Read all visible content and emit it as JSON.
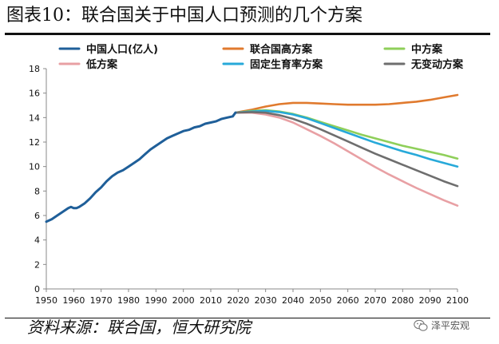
{
  "title": "图表10：联合国关于中国人口预测的几个方案",
  "source": "资料来源：联合国，恒大研究院",
  "watermark": "泽平宏观",
  "colors": {
    "china_pop": "#1f5f99",
    "un_high": "#e07a2e",
    "mid": "#8fcf5a",
    "low": "#e8a0a4",
    "fixed_fertility": "#27a9d9",
    "no_change": "#6e6e6e"
  },
  "chart_data": {
    "type": "line",
    "title": "联合国关于中国人口预测的几个方案",
    "xlabel": "",
    "ylabel": "",
    "xlim": [
      1950,
      2100
    ],
    "ylim": [
      0,
      18
    ],
    "x_ticks": [
      1950,
      1960,
      1970,
      1980,
      1990,
      2000,
      2010,
      2020,
      2030,
      2040,
      2050,
      2060,
      2070,
      2080,
      2090,
      2100
    ],
    "y_ticks": [
      0,
      2,
      4,
      6,
      8,
      10,
      12,
      14,
      16,
      18
    ],
    "grid": false,
    "legend_position": "top",
    "series": [
      {
        "name": "中国人口(亿人)",
        "color_key": "china_pop",
        "points": [
          [
            1950,
            5.5
          ],
          [
            1952,
            5.7
          ],
          [
            1954,
            6.0
          ],
          [
            1956,
            6.3
          ],
          [
            1958,
            6.6
          ],
          [
            1959,
            6.7
          ],
          [
            1960,
            6.6
          ],
          [
            1961,
            6.6
          ],
          [
            1962,
            6.7
          ],
          [
            1964,
            7.0
          ],
          [
            1966,
            7.4
          ],
          [
            1968,
            7.9
          ],
          [
            1970,
            8.3
          ],
          [
            1972,
            8.8
          ],
          [
            1974,
            9.2
          ],
          [
            1976,
            9.5
          ],
          [
            1978,
            9.7
          ],
          [
            1980,
            10.0
          ],
          [
            1982,
            10.3
          ],
          [
            1984,
            10.6
          ],
          [
            1986,
            11.0
          ],
          [
            1988,
            11.4
          ],
          [
            1990,
            11.7
          ],
          [
            1992,
            12.0
          ],
          [
            1994,
            12.3
          ],
          [
            1996,
            12.5
          ],
          [
            1998,
            12.7
          ],
          [
            2000,
            12.9
          ],
          [
            2002,
            13.0
          ],
          [
            2004,
            13.2
          ],
          [
            2006,
            13.3
          ],
          [
            2008,
            13.5
          ],
          [
            2010,
            13.6
          ],
          [
            2012,
            13.7
          ],
          [
            2014,
            13.9
          ],
          [
            2016,
            14.0
          ],
          [
            2018,
            14.1
          ],
          [
            2019,
            14.4
          ]
        ]
      },
      {
        "name": "联合国高方案",
        "color_key": "un_high",
        "points": [
          [
            2019,
            14.4
          ],
          [
            2025,
            14.65
          ],
          [
            2030,
            14.9
          ],
          [
            2035,
            15.1
          ],
          [
            2040,
            15.2
          ],
          [
            2045,
            15.2
          ],
          [
            2050,
            15.15
          ],
          [
            2055,
            15.1
          ],
          [
            2060,
            15.05
          ],
          [
            2065,
            15.05
          ],
          [
            2070,
            15.05
          ],
          [
            2075,
            15.1
          ],
          [
            2080,
            15.2
          ],
          [
            2085,
            15.3
          ],
          [
            2090,
            15.45
          ],
          [
            2095,
            15.65
          ],
          [
            2100,
            15.85
          ]
        ]
      },
      {
        "name": "中方案",
        "color_key": "mid",
        "points": [
          [
            2019,
            14.4
          ],
          [
            2025,
            14.55
          ],
          [
            2030,
            14.6
          ],
          [
            2035,
            14.5
          ],
          [
            2040,
            14.3
          ],
          [
            2045,
            14.0
          ],
          [
            2050,
            13.65
          ],
          [
            2055,
            13.3
          ],
          [
            2060,
            12.95
          ],
          [
            2065,
            12.6
          ],
          [
            2070,
            12.3
          ],
          [
            2075,
            12.0
          ],
          [
            2080,
            11.7
          ],
          [
            2085,
            11.45
          ],
          [
            2090,
            11.2
          ],
          [
            2095,
            10.95
          ],
          [
            2100,
            10.65
          ]
        ]
      },
      {
        "name": "低方案",
        "color_key": "low",
        "points": [
          [
            2019,
            14.4
          ],
          [
            2025,
            14.4
          ],
          [
            2030,
            14.25
          ],
          [
            2035,
            14.0
          ],
          [
            2040,
            13.6
          ],
          [
            2045,
            13.05
          ],
          [
            2050,
            12.5
          ],
          [
            2055,
            11.9
          ],
          [
            2060,
            11.25
          ],
          [
            2065,
            10.6
          ],
          [
            2070,
            9.95
          ],
          [
            2075,
            9.35
          ],
          [
            2080,
            8.8
          ],
          [
            2085,
            8.25
          ],
          [
            2090,
            7.75
          ],
          [
            2095,
            7.25
          ],
          [
            2100,
            6.8
          ]
        ]
      },
      {
        "name": "固定生育率方案",
        "color_key": "fixed_fertility",
        "points": [
          [
            2019,
            14.4
          ],
          [
            2025,
            14.5
          ],
          [
            2030,
            14.55
          ],
          [
            2035,
            14.45
          ],
          [
            2040,
            14.25
          ],
          [
            2045,
            13.95
          ],
          [
            2050,
            13.55
          ],
          [
            2055,
            13.15
          ],
          [
            2060,
            12.75
          ],
          [
            2065,
            12.35
          ],
          [
            2070,
            11.95
          ],
          [
            2075,
            11.6
          ],
          [
            2080,
            11.25
          ],
          [
            2085,
            10.95
          ],
          [
            2090,
            10.6
          ],
          [
            2095,
            10.3
          ],
          [
            2100,
            10.0
          ]
        ]
      },
      {
        "name": "无变动方案",
        "color_key": "no_change",
        "points": [
          [
            2019,
            14.4
          ],
          [
            2025,
            14.45
          ],
          [
            2030,
            14.4
          ],
          [
            2035,
            14.2
          ],
          [
            2040,
            13.9
          ],
          [
            2045,
            13.5
          ],
          [
            2050,
            13.05
          ],
          [
            2055,
            12.55
          ],
          [
            2060,
            12.05
          ],
          [
            2065,
            11.55
          ],
          [
            2070,
            11.05
          ],
          [
            2075,
            10.6
          ],
          [
            2080,
            10.15
          ],
          [
            2085,
            9.7
          ],
          [
            2090,
            9.25
          ],
          [
            2095,
            8.8
          ],
          [
            2100,
            8.4
          ]
        ]
      }
    ]
  }
}
